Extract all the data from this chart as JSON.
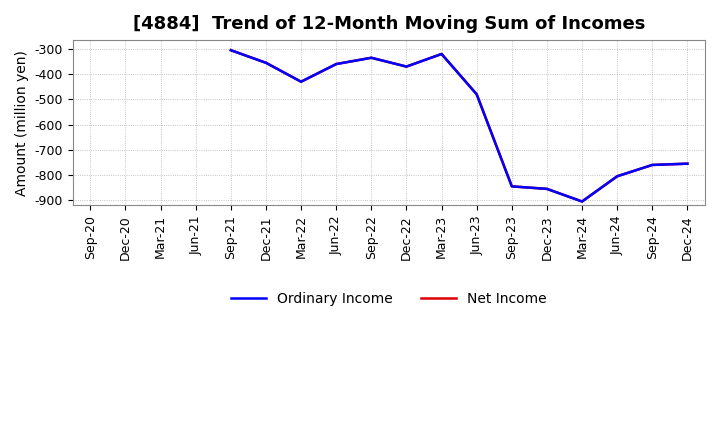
{
  "title": "[4884]  Trend of 12-Month Moving Sum of Incomes",
  "ylabel": "Amount (million yen)",
  "ylim": [
    -920,
    -265
  ],
  "yticks": [
    -900,
    -800,
    -700,
    -600,
    -500,
    -400,
    -300
  ],
  "background_color": "#ffffff",
  "plot_bg_color": "#ffffff",
  "x_labels": [
    "Sep-20",
    "Dec-20",
    "Mar-21",
    "Jun-21",
    "Sep-21",
    "Dec-21",
    "Mar-22",
    "Jun-22",
    "Sep-22",
    "Dec-22",
    "Mar-23",
    "Jun-23",
    "Sep-23",
    "Dec-23",
    "Mar-24",
    "Jun-24",
    "Sep-24",
    "Dec-24"
  ],
  "ordinary_income_x": [
    4,
    5,
    6,
    7,
    8,
    9,
    10,
    11,
    12,
    13,
    14,
    15,
    16,
    17
  ],
  "ordinary_income_y": [
    -305,
    -355,
    -430,
    -360,
    -335,
    -370,
    -320,
    -480,
    -845,
    -855,
    -905,
    -805,
    -760,
    -755
  ],
  "net_income_x": [
    4,
    5,
    6,
    7,
    8,
    9,
    10,
    11,
    12,
    13,
    14,
    15,
    16,
    17
  ],
  "net_income_y": [
    -305,
    -355,
    -430,
    -360,
    -335,
    -370,
    -320,
    -480,
    -845,
    -855,
    -905,
    -805,
    -760,
    -755
  ],
  "ordinary_income_color": "#0000ff",
  "net_income_color": "#dd0000",
  "legend_ordinary": "Ordinary Income",
  "legend_net": "Net Income",
  "title_fontsize": 13,
  "label_fontsize": 10,
  "tick_fontsize": 9,
  "linewidth": 1.8
}
